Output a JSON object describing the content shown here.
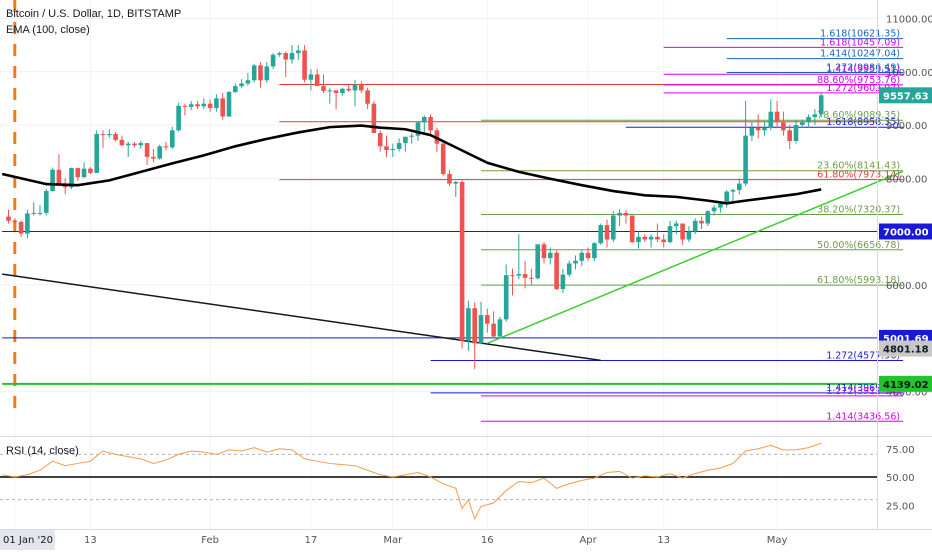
{
  "header": {
    "symbol_line": "Bitcoin / U.S. Dollar, 1D, BITSTAMP",
    "indicator_line": "EMA (100, close)",
    "rsi_label": "RSI (14, close)"
  },
  "price_axis": {
    "ticks": [
      "11000.00",
      "10000.00",
      "9000.00",
      "8000.00",
      "7000.00",
      "6000.00",
      "5000.00",
      "4000.00"
    ]
  },
  "rsi_axis": {
    "ticks": [
      "75.00",
      "50.00",
      "25.00"
    ]
  },
  "time_axis": {
    "labels": [
      {
        "text": "01 Jan '20",
        "day": 0,
        "highlight": true
      },
      {
        "text": "13",
        "day": 12
      },
      {
        "text": "Feb",
        "day": 31
      },
      {
        "text": "17",
        "day": 47
      },
      {
        "text": "Mar",
        "day": 60
      },
      {
        "text": "16",
        "day": 75
      },
      {
        "text": "Apr",
        "day": 91
      },
      {
        "text": "13",
        "day": 103
      },
      {
        "text": "May",
        "day": 121
      }
    ]
  },
  "price_badges": [
    {
      "text": "11000.00",
      "price": 11000,
      "bg": "none",
      "fg": "#555555"
    },
    {
      "text": "9557.63",
      "price": 9557.63,
      "bg": "#26a69a",
      "fg": "#ffffff"
    },
    {
      "text": "7000.00",
      "price": 7000,
      "bg": "#1a1ad6",
      "fg": "#ffffff"
    },
    {
      "text": "5001.69",
      "price": 5001.69,
      "bg": "#1a1ad6",
      "fg": "#ffffff"
    },
    {
      "text": "4801.18",
      "price": 4801.18,
      "bg": "#c8c8c8",
      "fg": "#131722"
    },
    {
      "text": "4139.02",
      "price": 4139.02,
      "bg": "#22c32b",
      "fg": "#131722"
    }
  ],
  "fib_labels": [
    {
      "text": "1.618(10621.35)",
      "price": 10621.35,
      "color": "#1565c0",
      "x0": 113,
      "x1": 141
    },
    {
      "text": "1.618(10457.09)",
      "price": 10457.09,
      "color": "#d500f9",
      "x0": 103,
      "x1": 141
    },
    {
      "text": "1.414(10247.04)",
      "price": 10247.04,
      "color": "#1565c0",
      "x0": 113,
      "x1": 141
    },
    {
      "text": "1.272(9986.49)",
      "price": 9986.49,
      "color": "#1565c0",
      "x0": 113,
      "x1": 141
    },
    {
      "text": "1.414(9953.51)",
      "price": 9953.51,
      "color": "#d500f9",
      "x0": 103,
      "x1": 141
    },
    {
      "text": "88.60%(9753.76)",
      "price": 9753.76,
      "color": "#d500f9",
      "x0": 103,
      "x1": 141
    },
    {
      "text": "1.272(9602.97)",
      "price": 9602.97,
      "color": "#d500f9",
      "x0": 103,
      "x1": 141
    },
    {
      "text": "1.618(8958.35)",
      "price": 8958.35,
      "color": "#1a1ad6",
      "x0": 97,
      "x1": 141
    },
    {
      "text": "78.60%(9089.35)",
      "price": 9089.35,
      "color": "#6d9e4a",
      "x0": 74,
      "x1": 141
    },
    {
      "text": "23.60%(8141.43)",
      "price": 8141.43,
      "color": "#6d9e4a",
      "x0": 74,
      "x1": 141
    },
    {
      "text": "61.80%(7973.14)",
      "price": 7973.14,
      "color": "#e53935",
      "x0": 42,
      "x1": 141
    },
    {
      "text": "38.20%(7320.37)",
      "price": 7320.37,
      "color": "#6d9e4a",
      "x0": 74,
      "x1": 141
    },
    {
      "text": "50.00%(6656.78)",
      "price": 6656.78,
      "color": "#6d9e4a",
      "x0": 74,
      "x1": 141
    },
    {
      "text": "61.80%(5993.18)",
      "price": 5993.18,
      "color": "#6d9e4a",
      "x0": 74,
      "x1": 141
    },
    {
      "text": "1.272(4577.96)",
      "price": 4577.96,
      "color": "#1a1ad6",
      "x0": 66,
      "x1": 141
    },
    {
      "text": "1.414(3969.66)",
      "price": 3969.66,
      "color": "#1a1ad6",
      "x0": 66,
      "x1": 141
    },
    {
      "text": "1.272(3912.54)",
      "price": 3912.54,
      "color": "#d500f9",
      "x0": 74,
      "x1": 141
    },
    {
      "text": "1.414(3436.56)",
      "price": 3436.56,
      "color": "#d500f9",
      "x0": 74,
      "x1": 141
    }
  ],
  "hlines": [
    {
      "price": 9760,
      "color": "#e53935",
      "x0": 42
    },
    {
      "price": 9060,
      "color": "#e53935",
      "x0": 42
    },
    {
      "price": 7000,
      "color": "#1a1ad6",
      "x0": -2
    },
    {
      "price": 5001.69,
      "color": "#1a1ad6",
      "x0": -2
    },
    {
      "price": 4139.02,
      "color": "#22c32b",
      "x0": -2
    }
  ],
  "trendlines": [
    {
      "from": [
        -2,
        6200
      ],
      "to": [
        93,
        4580
      ],
      "color": "#131722"
    },
    {
      "from": [
        75,
        4900
      ],
      "to": [
        141,
        8130
      ],
      "color": "#39d12b"
    }
  ],
  "chart_data": {
    "type": "candlestick",
    "title": "Bitcoin / U.S. Dollar, 1D, BITSTAMP",
    "x_axis": "date (day 0 = 01 Jan '20)",
    "ylim": [
      3250,
      11500
    ],
    "ohlc": [
      [
        -1,
        7280,
        7410,
        7150,
        7200
      ],
      [
        0,
        7200,
        7250,
        7150,
        7180
      ],
      [
        1,
        7180,
        7210,
        6900,
        6960
      ],
      [
        2,
        6960,
        7410,
        6870,
        7340
      ],
      [
        3,
        7340,
        7550,
        7300,
        7350
      ],
      [
        4,
        7350,
        7500,
        7300,
        7350
      ],
      [
        5,
        7350,
        7800,
        7300,
        7760
      ],
      [
        6,
        7760,
        8200,
        7750,
        8160
      ],
      [
        7,
        8160,
        8450,
        7880,
        7880
      ],
      [
        8,
        7880,
        8000,
        7700,
        7830
      ],
      [
        9,
        7830,
        8200,
        7800,
        8190
      ],
      [
        10,
        8190,
        8200,
        7950,
        8020
      ],
      [
        11,
        8020,
        8300,
        8010,
        8180
      ],
      [
        12,
        8180,
        8210,
        8080,
        8100
      ],
      [
        13,
        8100,
        8900,
        8100,
        8830
      ],
      [
        14,
        8830,
        8900,
        8570,
        8810
      ],
      [
        15,
        8810,
        8920,
        8760,
        8830
      ],
      [
        16,
        8830,
        8870,
        8690,
        8720
      ],
      [
        17,
        8720,
        8800,
        8600,
        8620
      ],
      [
        18,
        8620,
        8690,
        8400,
        8650
      ],
      [
        19,
        8650,
        8680,
        8580,
        8620
      ],
      [
        20,
        8620,
        8710,
        8550,
        8660
      ],
      [
        21,
        8660,
        8660,
        8250,
        8400
      ],
      [
        22,
        8400,
        8550,
        8300,
        8370
      ],
      [
        23,
        8370,
        8630,
        8350,
        8600
      ],
      [
        24,
        8600,
        8680,
        8520,
        8580
      ],
      [
        25,
        8580,
        8970,
        8550,
        8900
      ],
      [
        26,
        8900,
        9420,
        8880,
        9360
      ],
      [
        27,
        9360,
        9400,
        9180,
        9340
      ],
      [
        28,
        9340,
        9450,
        9280,
        9390
      ],
      [
        29,
        9390,
        9450,
        9300,
        9350
      ],
      [
        30,
        9350,
        9500,
        9300,
        9400
      ],
      [
        31,
        9400,
        9480,
        9250,
        9320
      ],
      [
        32,
        9320,
        9580,
        9250,
        9500
      ],
      [
        33,
        9500,
        9600,
        9100,
        9160
      ],
      [
        34,
        9160,
        9640,
        9150,
        9620
      ],
      [
        35,
        9620,
        9780,
        9600,
        9730
      ],
      [
        36,
        9730,
        9860,
        9700,
        9780
      ],
      [
        37,
        9780,
        9980,
        9740,
        9840
      ],
      [
        38,
        9840,
        10150,
        9800,
        10120
      ],
      [
        39,
        10120,
        10180,
        9700,
        9840
      ],
      [
        40,
        9840,
        10180,
        9790,
        10100
      ],
      [
        41,
        10100,
        10350,
        10050,
        10320
      ],
      [
        42,
        10320,
        10380,
        10280,
        10350
      ],
      [
        43,
        10350,
        10380,
        9900,
        10230
      ],
      [
        44,
        10230,
        10500,
        10150,
        10350
      ],
      [
        45,
        10350,
        10500,
        10220,
        10400
      ],
      [
        46,
        10400,
        10500,
        9800,
        9850
      ],
      [
        47,
        9850,
        10050,
        9650,
        9950
      ],
      [
        48,
        9950,
        10050,
        9750,
        9730
      ],
      [
        49,
        9730,
        9950,
        9600,
        9640
      ],
      [
        50,
        9640,
        9700,
        9400,
        9650
      ],
      [
        51,
        9650,
        9650,
        9300,
        9600
      ],
      [
        52,
        9600,
        9700,
        9550,
        9680
      ],
      [
        53,
        9680,
        9750,
        9620,
        9650
      ],
      [
        54,
        9650,
        9850,
        9350,
        9760
      ],
      [
        55,
        9760,
        9820,
        9600,
        9650
      ],
      [
        56,
        9650,
        9700,
        9300,
        9400
      ],
      [
        57,
        9400,
        9450,
        8850,
        8850
      ],
      [
        58,
        8850,
        8900,
        8500,
        8600
      ],
      [
        59,
        8600,
        8800,
        8400,
        8530
      ],
      [
        60,
        8530,
        8650,
        8400,
        8550
      ],
      [
        61,
        8550,
        8750,
        8500,
        8660
      ],
      [
        62,
        8660,
        8700,
        8500,
        8780
      ],
      [
        63,
        8780,
        8850,
        8650,
        8800
      ],
      [
        64,
        8800,
        9050,
        8700,
        9050
      ],
      [
        65,
        9050,
        9180,
        8850,
        9150
      ],
      [
        66,
        9150,
        9200,
        8800,
        8900
      ],
      [
        67,
        8900,
        8950,
        8500,
        8650
      ],
      [
        68,
        8650,
        8700,
        8050,
        8080
      ],
      [
        69,
        8080,
        8150,
        7850,
        7900
      ],
      [
        70,
        7900,
        7950,
        7650,
        7930
      ],
      [
        71,
        7930,
        7960,
        4800,
        4950
      ],
      [
        72,
        4950,
        5700,
        4760,
        5560
      ],
      [
        73,
        5560,
        5670,
        4420,
        4900
      ],
      [
        74,
        4900,
        5680,
        4880,
        5430
      ],
      [
        75,
        5430,
        5550,
        5100,
        5270
      ],
      [
        76,
        5270,
        5500,
        5000,
        5030
      ],
      [
        77,
        5030,
        5400,
        5000,
        5350
      ],
      [
        78,
        5350,
        6380,
        5300,
        6180
      ],
      [
        79,
        6180,
        6300,
        5800,
        6170
      ],
      [
        80,
        6170,
        6950,
        6100,
        6200
      ],
      [
        81,
        6200,
        6450,
        5930,
        6130
      ],
      [
        82,
        6130,
        6300,
        6000,
        6120
      ],
      [
        83,
        6120,
        6750,
        6100,
        6760
      ],
      [
        84,
        6760,
        6800,
        6400,
        6500
      ],
      [
        85,
        6500,
        6700,
        6380,
        6600
      ],
      [
        86,
        6600,
        6650,
        5900,
        5920
      ],
      [
        87,
        5920,
        6300,
        5850,
        6190
      ],
      [
        88,
        6190,
        6450,
        6150,
        6400
      ],
      [
        89,
        6400,
        6550,
        6290,
        6450
      ],
      [
        90,
        6450,
        6650,
        6350,
        6600
      ],
      [
        91,
        6600,
        6700,
        6450,
        6500
      ],
      [
        92,
        6500,
        6800,
        6450,
        6780
      ],
      [
        93,
        6780,
        7150,
        6750,
        7120
      ],
      [
        94,
        7120,
        7220,
        6700,
        6850
      ],
      [
        95,
        6850,
        7380,
        6800,
        7300
      ],
      [
        96,
        7300,
        7420,
        7100,
        7350
      ],
      [
        97,
        7350,
        7400,
        7150,
        7300
      ],
      [
        98,
        7300,
        7250,
        6780,
        6800
      ],
      [
        99,
        6800,
        7000,
        6680,
        6900
      ],
      [
        100,
        6900,
        6950,
        6800,
        6850
      ],
      [
        101,
        6850,
        6950,
        6700,
        6900
      ],
      [
        102,
        6900,
        7150,
        6800,
        6850
      ],
      [
        103,
        6850,
        6950,
        6700,
        6800
      ],
      [
        104,
        6800,
        7200,
        6780,
        7100
      ],
      [
        105,
        7100,
        7200,
        6950,
        7150
      ],
      [
        106,
        7150,
        7100,
        6750,
        6850
      ],
      [
        107,
        6850,
        7100,
        6800,
        7000
      ],
      [
        108,
        7000,
        7250,
        6950,
        7200
      ],
      [
        109,
        7200,
        7280,
        7050,
        7150
      ],
      [
        110,
        7150,
        7400,
        7100,
        7380
      ],
      [
        111,
        7380,
        7500,
        7300,
        7450
      ],
      [
        112,
        7450,
        7550,
        7350,
        7520
      ],
      [
        113,
        7520,
        7780,
        7450,
        7750
      ],
      [
        114,
        7750,
        7800,
        7550,
        7780
      ],
      [
        115,
        7780,
        8000,
        7700,
        7900
      ],
      [
        116,
        7900,
        9450,
        7850,
        8800
      ],
      [
        117,
        8800,
        9050,
        8700,
        8950
      ],
      [
        118,
        8950,
        9200,
        8750,
        8900
      ],
      [
        119,
        8900,
        9050,
        8800,
        8950
      ],
      [
        120,
        8950,
        9480,
        8900,
        9250
      ],
      [
        121,
        9250,
        9450,
        8950,
        9050
      ],
      [
        122,
        9050,
        9250,
        8800,
        8900
      ],
      [
        123,
        8900,
        9000,
        8550,
        8700
      ],
      [
        124,
        8700,
        9100,
        8650,
        9000
      ],
      [
        125,
        9000,
        9100,
        8950,
        9050
      ],
      [
        126,
        9050,
        9200,
        8950,
        9150
      ],
      [
        127,
        9150,
        9300,
        9000,
        9200
      ],
      [
        128,
        9200,
        9600,
        9150,
        9557.63
      ]
    ],
    "ema100": [
      [
        -2,
        8080
      ],
      [
        5,
        7890
      ],
      [
        10,
        7870
      ],
      [
        15,
        7960
      ],
      [
        20,
        8120
      ],
      [
        25,
        8280
      ],
      [
        30,
        8430
      ],
      [
        35,
        8600
      ],
      [
        40,
        8740
      ],
      [
        45,
        8860
      ],
      [
        50,
        8960
      ],
      [
        55,
        8990
      ],
      [
        58,
        8950
      ],
      [
        62,
        8920
      ],
      [
        66,
        8810
      ],
      [
        70,
        8580
      ],
      [
        75,
        8290
      ],
      [
        80,
        8120
      ],
      [
        85,
        7990
      ],
      [
        90,
        7870
      ],
      [
        95,
        7760
      ],
      [
        100,
        7680
      ],
      [
        105,
        7650
      ],
      [
        110,
        7580
      ],
      [
        113,
        7530
      ],
      [
        116,
        7580
      ],
      [
        120,
        7640
      ],
      [
        124,
        7700
      ],
      [
        128,
        7790
      ]
    ],
    "rsi": [
      [
        -2,
        52
      ],
      [
        0,
        50
      ],
      [
        2,
        52
      ],
      [
        4,
        56
      ],
      [
        6,
        64
      ],
      [
        8,
        60
      ],
      [
        10,
        62
      ],
      [
        12,
        64
      ],
      [
        14,
        73
      ],
      [
        16,
        70
      ],
      [
        18,
        68
      ],
      [
        20,
        66
      ],
      [
        22,
        62
      ],
      [
        24,
        65
      ],
      [
        26,
        70
      ],
      [
        28,
        73
      ],
      [
        30,
        72
      ],
      [
        32,
        70
      ],
      [
        34,
        74
      ],
      [
        36,
        73
      ],
      [
        38,
        76
      ],
      [
        40,
        72
      ],
      [
        42,
        75
      ],
      [
        44,
        74
      ],
      [
        46,
        66
      ],
      [
        48,
        64
      ],
      [
        50,
        62
      ],
      [
        52,
        61
      ],
      [
        54,
        60
      ],
      [
        56,
        56
      ],
      [
        58,
        52
      ],
      [
        60,
        50
      ],
      [
        62,
        52
      ],
      [
        64,
        54
      ],
      [
        66,
        50
      ],
      [
        68,
        44
      ],
      [
        70,
        40
      ],
      [
        71,
        22
      ],
      [
        72,
        30
      ],
      [
        73,
        13
      ],
      [
        74,
        24
      ],
      [
        76,
        27
      ],
      [
        78,
        38
      ],
      [
        80,
        46
      ],
      [
        82,
        45
      ],
      [
        84,
        49
      ],
      [
        86,
        40
      ],
      [
        88,
        44
      ],
      [
        90,
        47
      ],
      [
        92,
        49
      ],
      [
        94,
        54
      ],
      [
        96,
        55
      ],
      [
        98,
        49
      ],
      [
        100,
        51
      ],
      [
        102,
        50
      ],
      [
        104,
        53
      ],
      [
        106,
        49
      ],
      [
        108,
        53
      ],
      [
        110,
        56
      ],
      [
        112,
        58
      ],
      [
        114,
        62
      ],
      [
        116,
        73
      ],
      [
        118,
        75
      ],
      [
        120,
        78
      ],
      [
        122,
        74
      ],
      [
        124,
        74
      ],
      [
        126,
        76
      ],
      [
        128,
        80
      ]
    ],
    "rsi_levels": [
      70,
      50,
      30
    ]
  }
}
